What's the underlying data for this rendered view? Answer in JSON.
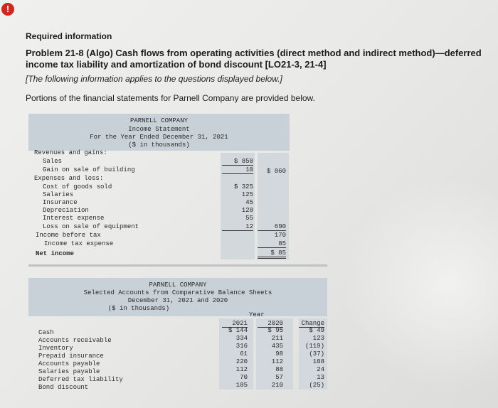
{
  "header": {
    "alert_icon": "!",
    "required_label": "Required information",
    "problem_title": "Problem 21-8 (Algo) Cash flows from operating activities (direct method and indirect method)—deferred income tax liability and amortization of bond discount [LO21-3, 21-4]",
    "note": "[The following information applies to the questions displayed below.]",
    "portions": "Portions of the financial statements for Parnell Company are provided below."
  },
  "income_statement": {
    "company": "PARNELL COMPANY",
    "title": "Income Statement",
    "period": "For the Year Ended December 31, 2021",
    "units": "($ in thousands)",
    "lines": [
      {
        "label": "Revenues and gains:",
        "col1": "",
        "col2": ""
      },
      {
        "label": "Sales",
        "col1": "$ 850",
        "col2": ""
      },
      {
        "label": "Gain on sale of building",
        "col1": "10",
        "col2": "$ 860"
      },
      {
        "label": "Expenses and loss:",
        "col1": "",
        "col2": ""
      },
      {
        "label": "Cost of goods sold",
        "col1": "$ 325",
        "col2": ""
      },
      {
        "label": "Salaries",
        "col1": "125",
        "col2": ""
      },
      {
        "label": "Insurance",
        "col1": "45",
        "col2": ""
      },
      {
        "label": "Depreciation",
        "col1": "128",
        "col2": ""
      },
      {
        "label": "Interest expense",
        "col1": "55",
        "col2": ""
      },
      {
        "label": "Loss on sale of equipment",
        "col1": "12",
        "col2": "690"
      },
      {
        "label": "Income before tax",
        "col1": "",
        "col2": "170"
      },
      {
        "label": "Income tax expense",
        "col1": "",
        "col2": "85"
      },
      {
        "label": "Net income",
        "col1": "",
        "col2": "$ 85"
      }
    ]
  },
  "balance_sheets": {
    "company": "PARNELL COMPANY",
    "title": "Selected Accounts from Comparative Balance Sheets",
    "period": "December 31, 2021 and 2020",
    "units": "($ in thousands)",
    "year_label": "Year",
    "headers": [
      "2021",
      "2020",
      "Change"
    ],
    "rows": [
      {
        "label": "Cash",
        "y2021": "$ 144",
        "y2020": "$ 95",
        "change": "$ 49"
      },
      {
        "label": "Accounts receivable",
        "y2021": "334",
        "y2020": "211",
        "change": "123"
      },
      {
        "label": "Inventory",
        "y2021": "316",
        "y2020": "435",
        "change": "(119)"
      },
      {
        "label": "Prepaid insurance",
        "y2021": "61",
        "y2020": "98",
        "change": "(37)"
      },
      {
        "label": "Accounts payable",
        "y2021": "220",
        "y2020": "112",
        "change": "108"
      },
      {
        "label": "Salaries payable",
        "y2021": "112",
        "y2020": "88",
        "change": "24"
      },
      {
        "label": "Deferred tax liability",
        "y2021": "70",
        "y2020": "57",
        "change": "13"
      },
      {
        "label": "Bond discount",
        "y2021": "185",
        "y2020": "210",
        "change": "(25)"
      }
    ]
  }
}
